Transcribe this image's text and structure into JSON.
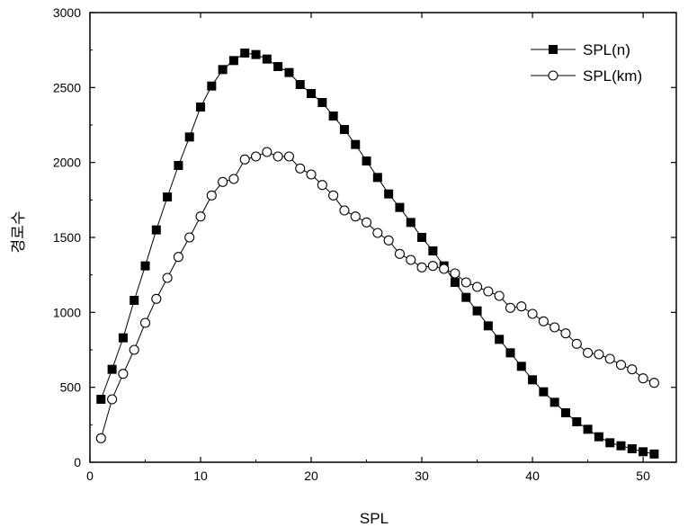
{
  "chart_data": {
    "type": "line",
    "xlabel": "SPL",
    "ylabel": "경로수",
    "xlim": [
      0,
      53
    ],
    "ylim": [
      0,
      3000
    ],
    "x_ticks": [
      0,
      10,
      20,
      30,
      40,
      50
    ],
    "y_ticks": [
      0,
      500,
      1000,
      1500,
      2000,
      2500,
      3000
    ],
    "grid": false,
    "legend_position": "top-right",
    "x": [
      1,
      2,
      3,
      4,
      5,
      6,
      7,
      8,
      9,
      10,
      11,
      12,
      13,
      14,
      15,
      16,
      17,
      18,
      19,
      20,
      21,
      22,
      23,
      24,
      25,
      26,
      27,
      28,
      29,
      30,
      31,
      32,
      33,
      34,
      35,
      36,
      37,
      38,
      39,
      40,
      41,
      42,
      43,
      44,
      45,
      46,
      47,
      48,
      49,
      50,
      51
    ],
    "series": [
      {
        "name": "SPL(n)",
        "marker": "filled-square",
        "color": "#000000",
        "values": [
          420,
          620,
          830,
          1080,
          1310,
          1550,
          1770,
          1980,
          2170,
          2370,
          2510,
          2620,
          2680,
          2730,
          2720,
          2690,
          2640,
          2600,
          2520,
          2460,
          2400,
          2310,
          2220,
          2120,
          2010,
          1900,
          1790,
          1700,
          1600,
          1500,
          1410,
          1310,
          1200,
          1100,
          1010,
          910,
          820,
          730,
          640,
          550,
          470,
          400,
          330,
          270,
          220,
          170,
          130,
          110,
          90,
          70,
          55
        ]
      },
      {
        "name": "SPL(km)",
        "marker": "open-circle",
        "color": "#000000",
        "values": [
          160,
          420,
          590,
          750,
          930,
          1090,
          1230,
          1370,
          1500,
          1640,
          1780,
          1870,
          1890,
          2020,
          2040,
          2070,
          2040,
          2040,
          1960,
          1920,
          1850,
          1780,
          1680,
          1640,
          1600,
          1530,
          1480,
          1390,
          1350,
          1300,
          1310,
          1290,
          1260,
          1200,
          1170,
          1140,
          1110,
          1030,
          1040,
          990,
          940,
          900,
          860,
          790,
          730,
          720,
          690,
          650,
          620,
          560,
          530
        ]
      }
    ]
  }
}
